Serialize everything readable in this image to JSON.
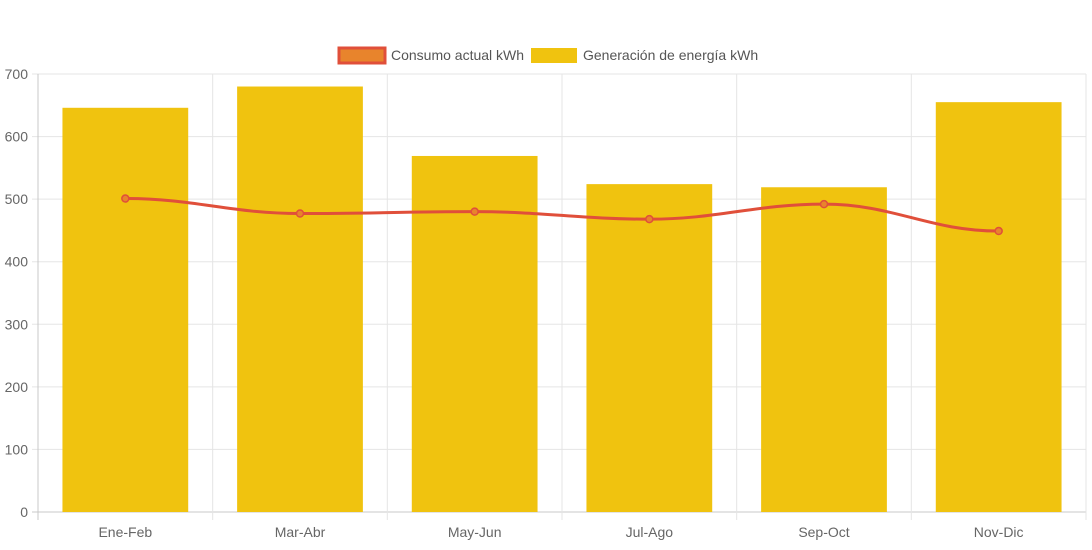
{
  "colors": {
    "bar_fill": "#F0C30F",
    "line_stroke": "#E04F3A",
    "point_fill": "#E8842C",
    "grid": "#E5E5E5",
    "axis_text": "#666666",
    "legend_text": "#555555"
  },
  "chart_data": {
    "type": "bar",
    "categories": [
      "Ene-Feb",
      "Mar-Abr",
      "May-Jun",
      "Jul-Ago",
      "Sep-Oct",
      "Nov-Dic"
    ],
    "series": [
      {
        "name": "Consumo actual kWh",
        "type": "line",
        "values": [
          501,
          477,
          480,
          468,
          492,
          449
        ]
      },
      {
        "name": "Generación de energía kWh",
        "type": "bar",
        "values": [
          646,
          680,
          569,
          524,
          519,
          655
        ]
      }
    ],
    "ylim": [
      0,
      700
    ],
    "yticks": [
      "0",
      "100",
      "200",
      "300",
      "400",
      "500",
      "600",
      "700"
    ],
    "grid": true,
    "legend_position": "top-center"
  }
}
